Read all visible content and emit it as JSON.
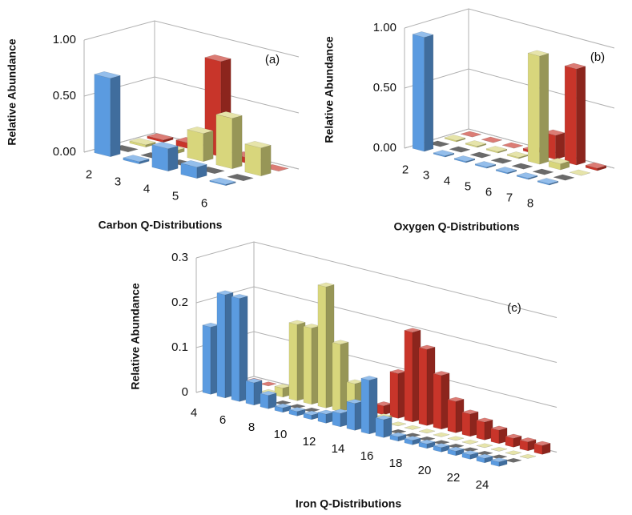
{
  "chart_data": [
    {
      "type": "bar3d",
      "annotation": "(a)",
      "xlabel": "Carbon Q-Distributions",
      "ylabel": "Relative Abundance",
      "categories": [
        "2",
        "3",
        "4",
        "5",
        "6"
      ],
      "ylim": [
        0,
        1
      ],
      "yticks": [
        {
          "value": 0,
          "label": "0.00"
        },
        {
          "value": 0.5,
          "label": "0.50"
        },
        {
          "value": 1,
          "label": "1.00"
        }
      ],
      "grid": true,
      "series": [
        {
          "color": "#5b9be0",
          "values": [
            0.7,
            0.02,
            0.2,
            0.1,
            0.01
          ]
        },
        {
          "color": "#1a1a1a",
          "values": [
            0,
            0,
            0,
            0,
            0
          ]
        },
        {
          "color": "#d8d67c",
          "values": [
            0.02,
            0.03,
            0.25,
            0.45,
            0.25
          ]
        },
        {
          "color": "#c8352a",
          "values": [
            0.02,
            0.05,
            0.85,
            0.05,
            0
          ]
        }
      ]
    },
    {
      "type": "bar3d",
      "annotation": "(b)",
      "xlabel": "Oxygen Q-Distributions",
      "ylabel": "Relative Abundance",
      "categories": [
        "2",
        "3",
        "4",
        "5",
        "6",
        "7",
        "8"
      ],
      "ylim": [
        0,
        1
      ],
      "yticks": [
        {
          "value": 0,
          "label": "0.00"
        },
        {
          "value": 0.5,
          "label": "0.50"
        },
        {
          "value": 1,
          "label": "1.00"
        }
      ],
      "grid": true,
      "series": [
        {
          "color": "#5b9be0",
          "values": [
            0.95,
            0.01,
            0.01,
            0.01,
            0.01,
            0.01,
            0.01
          ]
        },
        {
          "color": "#1a1a1a",
          "values": [
            0,
            0,
            0,
            0,
            0,
            0,
            0
          ]
        },
        {
          "color": "#d8d67c",
          "values": [
            0.01,
            0.01,
            0.01,
            0.01,
            0.9,
            0.05,
            0
          ]
        },
        {
          "color": "#c8352a",
          "values": [
            0,
            0,
            0,
            0.02,
            0.2,
            0.8,
            0.02
          ]
        }
      ]
    },
    {
      "type": "bar3d",
      "annotation": "(c)",
      "xlabel": "Iron  Q-Distributions",
      "ylabel": "Relative Abundance",
      "categories": [
        "4",
        null,
        "6",
        null,
        "8",
        null,
        "10",
        null,
        "12",
        null,
        "14",
        null,
        "16",
        null,
        "18",
        null,
        "20",
        null,
        "22",
        null,
        "24"
      ],
      "ylim": [
        0,
        0.3
      ],
      "yticks": [
        0,
        0.1,
        0.2,
        0.3
      ],
      "grid": true,
      "series": [
        {
          "color": "#5b9be0",
          "values": [
            0.15,
            0.23,
            0.23,
            0.05,
            0.03,
            0.01,
            0.01,
            0.01,
            0.02,
            0.03,
            0.06,
            0.12,
            0.04,
            0.01,
            0.01,
            0.01,
            0.01,
            0.01,
            0.01,
            0.01,
            0.01
          ]
        },
        {
          "color": "#1a1a1a",
          "values": [
            0,
            0,
            0,
            0,
            0,
            0,
            0,
            0,
            0,
            0,
            0,
            0,
            0,
            0,
            0,
            0,
            0,
            0,
            0,
            0,
            0
          ]
        },
        {
          "color": "#d8d67c",
          "values": [
            0,
            0,
            0,
            0.02,
            0.17,
            0.17,
            0.27,
            0.15,
            0.07,
            0.02,
            0.01,
            0,
            0,
            0,
            0,
            0,
            0,
            0,
            0,
            0,
            0
          ]
        },
        {
          "color": "#c8352a",
          "values": [
            0,
            0,
            0,
            0,
            0,
            0,
            0,
            0,
            0,
            0.02,
            0.1,
            0.2,
            0.17,
            0.12,
            0.07,
            0.05,
            0.04,
            0.03,
            0.02,
            0.02,
            0.02
          ]
        }
      ]
    }
  ]
}
